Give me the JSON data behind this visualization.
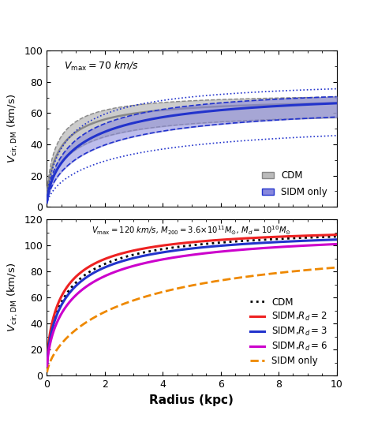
{
  "top_panel": {
    "ylim": [
      0,
      100
    ],
    "yticks": [
      0,
      20,
      40,
      60,
      80,
      100
    ],
    "xlim": [
      0,
      10
    ],
    "ylabel": "$V_{\\mathrm{cir,DM}}$ (km/s)",
    "cdm_color": "#888888",
    "sidm_color": "#2233cc",
    "cdm_fill": "#bbbbbb",
    "sidm_fill": "#8888dd",
    "annotation": "$V_{\\mathrm{max}}=70$ km/s"
  },
  "bottom_panel": {
    "ylim": [
      0,
      120
    ],
    "yticks": [
      0,
      20,
      40,
      60,
      80,
      100,
      120
    ],
    "xlim": [
      0,
      10
    ],
    "ylabel": "$V_{\\mathrm{cir,DM}}$ (km/s)",
    "xlabel": "Radius (kpc)",
    "cdm_color": "#000000",
    "red_color": "#ee2222",
    "blue_color": "#2233cc",
    "magenta_color": "#cc00cc",
    "orange_color": "#ee8800",
    "annotation": "$V_{\\mathrm{max}}=120$ km/s, $M_{200}=3.6{\\times}10^{11}M_{\\odot}$, $M_d=10^{10}M_{\\odot}$"
  }
}
